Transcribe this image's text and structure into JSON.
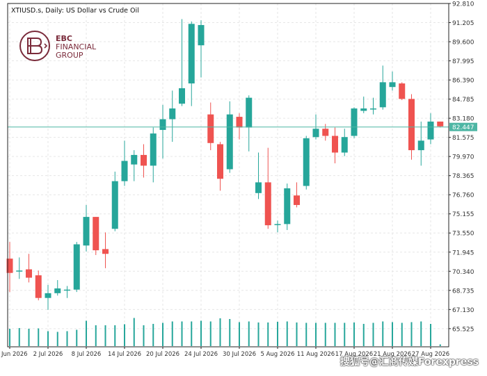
{
  "chart_header": "XTIUSD.s, Daily:  US Dollar vs Crude Oil",
  "logo": {
    "line1": "EBC",
    "line2": "FINANCIAL",
    "line3": "GROUP",
    "color": "#7a2a3a"
  },
  "watermark": "搜狐号@汇商传媒Forexpress",
  "colors": {
    "bull": "#26a69a",
    "bear": "#ef5350",
    "grid": "#e6e6e6",
    "volume": "#26a69a",
    "price_line": "#4db6a4",
    "price_tag_bg": "#4db6a4",
    "axis_text": "#333333"
  },
  "chart_data": {
    "type": "candlestick",
    "symbol": "XTIUSD.s",
    "timeframe": "Daily",
    "title": "US Dollar vs Crude Oil",
    "ylim": [
      64.0,
      92.81
    ],
    "y_ticks": [
      "92.810",
      "91.205",
      "89.600",
      "87.995",
      "86.390",
      "84.785",
      "83.180",
      "81.575",
      "79.970",
      "78.365",
      "76.760",
      "75.155",
      "73.550",
      "71.945",
      "70.340",
      "68.735",
      "67.130",
      "65.525"
    ],
    "x_tick_labels": [
      {
        "label": "26 Jun 2026",
        "index": 0
      },
      {
        "label": "2 Jul 2026",
        "index": 4
      },
      {
        "label": "8 Jul 2026",
        "index": 8
      },
      {
        "label": "14 Jul 2026",
        "index": 12
      },
      {
        "label": "20 Jul 2026",
        "index": 16
      },
      {
        "label": "24 Jul 2026",
        "index": 20
      },
      {
        "label": "30 Jul 2026",
        "index": 24
      },
      {
        "label": "5 Aug 2026",
        "index": 28
      },
      {
        "label": "11 Aug 2026",
        "index": 32
      },
      {
        "label": "17 Aug 2026",
        "index": 36
      },
      {
        "label": "21 Aug 2026",
        "index": 40
      },
      {
        "label": "27 Aug 2026",
        "index": 44
      }
    ],
    "current_price": "82.447",
    "current_price_value": 82.447,
    "candles": [
      {
        "o": 71.4,
        "h": 72.8,
        "l": 68.6,
        "c": 70.2
      },
      {
        "o": 70.4,
        "h": 71.5,
        "l": 69.7,
        "c": 70.4
      },
      {
        "o": 70.5,
        "h": 71.8,
        "l": 69.4,
        "c": 69.8
      },
      {
        "o": 70.0,
        "h": 70.4,
        "l": 67.9,
        "c": 68.1
      },
      {
        "o": 68.1,
        "h": 69.2,
        "l": 67.1,
        "c": 68.5
      },
      {
        "o": 68.5,
        "h": 69.6,
        "l": 68.3,
        "c": 68.9
      },
      {
        "o": 68.8,
        "h": 69.1,
        "l": 68.1,
        "c": 68.8
      },
      {
        "o": 68.8,
        "h": 72.8,
        "l": 68.6,
        "c": 72.6
      },
      {
        "o": 72.5,
        "h": 75.9,
        "l": 72.0,
        "c": 74.9
      },
      {
        "o": 74.9,
        "h": 74.9,
        "l": 71.7,
        "c": 72.1
      },
      {
        "o": 72.2,
        "h": 73.6,
        "l": 70.6,
        "c": 71.8
      },
      {
        "o": 73.9,
        "h": 78.7,
        "l": 73.7,
        "c": 77.9
      },
      {
        "o": 77.9,
        "h": 81.3,
        "l": 77.5,
        "c": 79.6
      },
      {
        "o": 79.3,
        "h": 80.5,
        "l": 77.9,
        "c": 80.1
      },
      {
        "o": 80.1,
        "h": 81.0,
        "l": 78.2,
        "c": 79.2
      },
      {
        "o": 79.2,
        "h": 82.4,
        "l": 77.8,
        "c": 81.9
      },
      {
        "o": 82.2,
        "h": 84.3,
        "l": 79.8,
        "c": 83.1
      },
      {
        "o": 83.1,
        "h": 85.5,
        "l": 81.2,
        "c": 84.0
      },
      {
        "o": 84.4,
        "h": 91.5,
        "l": 84.2,
        "c": 85.7
      },
      {
        "o": 86.1,
        "h": 91.3,
        "l": 84.2,
        "c": 91.1
      },
      {
        "o": 89.3,
        "h": 91.4,
        "l": 86.6,
        "c": 91.0
      },
      {
        "o": 83.5,
        "h": 84.5,
        "l": 80.5,
        "c": 81.1
      },
      {
        "o": 81.0,
        "h": 81.2,
        "l": 77.1,
        "c": 78.1
      },
      {
        "o": 78.9,
        "h": 84.6,
        "l": 78.6,
        "c": 83.5
      },
      {
        "o": 83.3,
        "h": 83.6,
        "l": 81.4,
        "c": 82.4
      },
      {
        "o": 82.4,
        "h": 85.1,
        "l": 80.4,
        "c": 84.9
      },
      {
        "o": 76.9,
        "h": 80.3,
        "l": 76.4,
        "c": 77.8
      },
      {
        "o": 77.8,
        "h": 80.7,
        "l": 73.9,
        "c": 74.2
      },
      {
        "o": 74.3,
        "h": 74.6,
        "l": 73.6,
        "c": 74.3
      },
      {
        "o": 74.3,
        "h": 77.7,
        "l": 73.8,
        "c": 77.3
      },
      {
        "o": 76.7,
        "h": 77.8,
        "l": 75.7,
        "c": 75.9
      },
      {
        "o": 77.5,
        "h": 81.7,
        "l": 77.2,
        "c": 81.5
      },
      {
        "o": 81.6,
        "h": 83.5,
        "l": 81.4,
        "c": 82.3
      },
      {
        "o": 82.3,
        "h": 82.7,
        "l": 81.3,
        "c": 81.7
      },
      {
        "o": 81.7,
        "h": 82.4,
        "l": 79.4,
        "c": 80.3
      },
      {
        "o": 80.3,
        "h": 82.3,
        "l": 80.0,
        "c": 81.6
      },
      {
        "o": 81.7,
        "h": 84.1,
        "l": 81.5,
        "c": 84.0
      },
      {
        "o": 83.8,
        "h": 85.0,
        "l": 83.6,
        "c": 84.0
      },
      {
        "o": 84.0,
        "h": 84.9,
        "l": 83.5,
        "c": 84.0
      },
      {
        "o": 84.1,
        "h": 87.6,
        "l": 83.9,
        "c": 86.2
      },
      {
        "o": 85.8,
        "h": 87.1,
        "l": 85.5,
        "c": 86.2
      },
      {
        "o": 86.1,
        "h": 86.2,
        "l": 84.7,
        "c": 84.8
      },
      {
        "o": 84.8,
        "h": 85.2,
        "l": 79.7,
        "c": 80.5
      },
      {
        "o": 80.5,
        "h": 82.9,
        "l": 79.2,
        "c": 81.3
      },
      {
        "o": 81.4,
        "h": 83.6,
        "l": 81.0,
        "c": 82.9
      },
      {
        "o": 82.9,
        "h": 82.9,
        "l": 82.4,
        "c": 82.5
      }
    ],
    "volume": [
      0.5,
      0.52,
      0.5,
      0.51,
      0.43,
      0.41,
      0.43,
      0.47,
      0.73,
      0.6,
      0.6,
      0.6,
      0.63,
      0.81,
      0.6,
      0.64,
      0.67,
      0.71,
      0.71,
      0.71,
      0.73,
      0.71,
      0.8,
      0.78,
      0.69,
      0.71,
      0.68,
      0.68,
      0.7,
      0.71,
      0.68,
      0.67,
      0.67,
      0.67,
      0.67,
      0.67,
      0.68,
      0.64,
      0.67,
      0.71,
      0.69,
      0.67,
      0.69,
      0.71,
      0.64,
      0.05
    ],
    "grid": true
  }
}
